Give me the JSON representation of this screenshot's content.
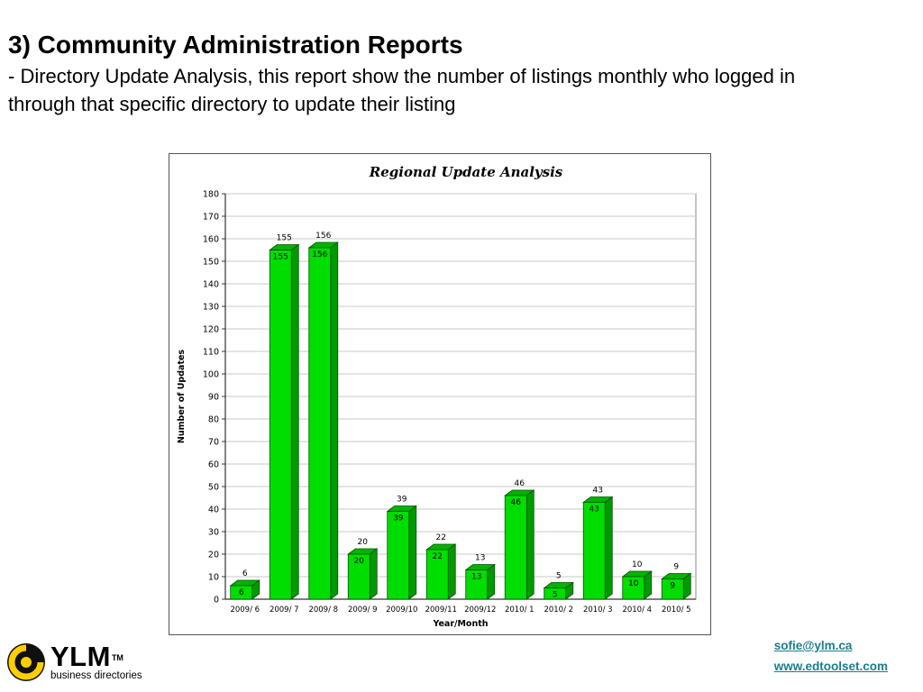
{
  "slide": {
    "title": "3) Community Administration Reports",
    "subtitle": "- Directory Update Analysis, this report show the number of listings monthly who logged in through that specific directory to update their listing"
  },
  "chart_data": {
    "type": "bar",
    "title": "Regional Update Analysis",
    "xlabel": "Year/Month",
    "ylabel": "Number of Updates",
    "categories": [
      "2009/ 6",
      "2009/ 7",
      "2009/ 8",
      "2009/ 9",
      "2009/10",
      "2009/11",
      "2009/12",
      "2010/ 1",
      "2010/ 2",
      "2010/ 3",
      "2010/ 4",
      "2010/ 5"
    ],
    "values": [
      6,
      155,
      156,
      20,
      39,
      22,
      13,
      46,
      5,
      43,
      10,
      9
    ],
    "ylim": [
      0,
      180
    ],
    "ytick_step": 10,
    "grid": true,
    "legend": "none",
    "colors": {
      "bar_front": "#00dd00",
      "bar_top": "#00b400",
      "bar_side": "#009a00",
      "bar_stroke": "#005200",
      "gridline": "#c9c9c9",
      "axis": "#333333",
      "plot_border": "#8a8a8a"
    }
  },
  "footer": {
    "logo_text": "YLM",
    "logo_tm": "TM",
    "logo_sub": "business directories",
    "logo_colors": {
      "disc": "#101010",
      "accent": "#ffce00"
    },
    "links": [
      {
        "label": "sofie@ylm.ca"
      },
      {
        "label": "www.edtoolset.com"
      }
    ]
  }
}
